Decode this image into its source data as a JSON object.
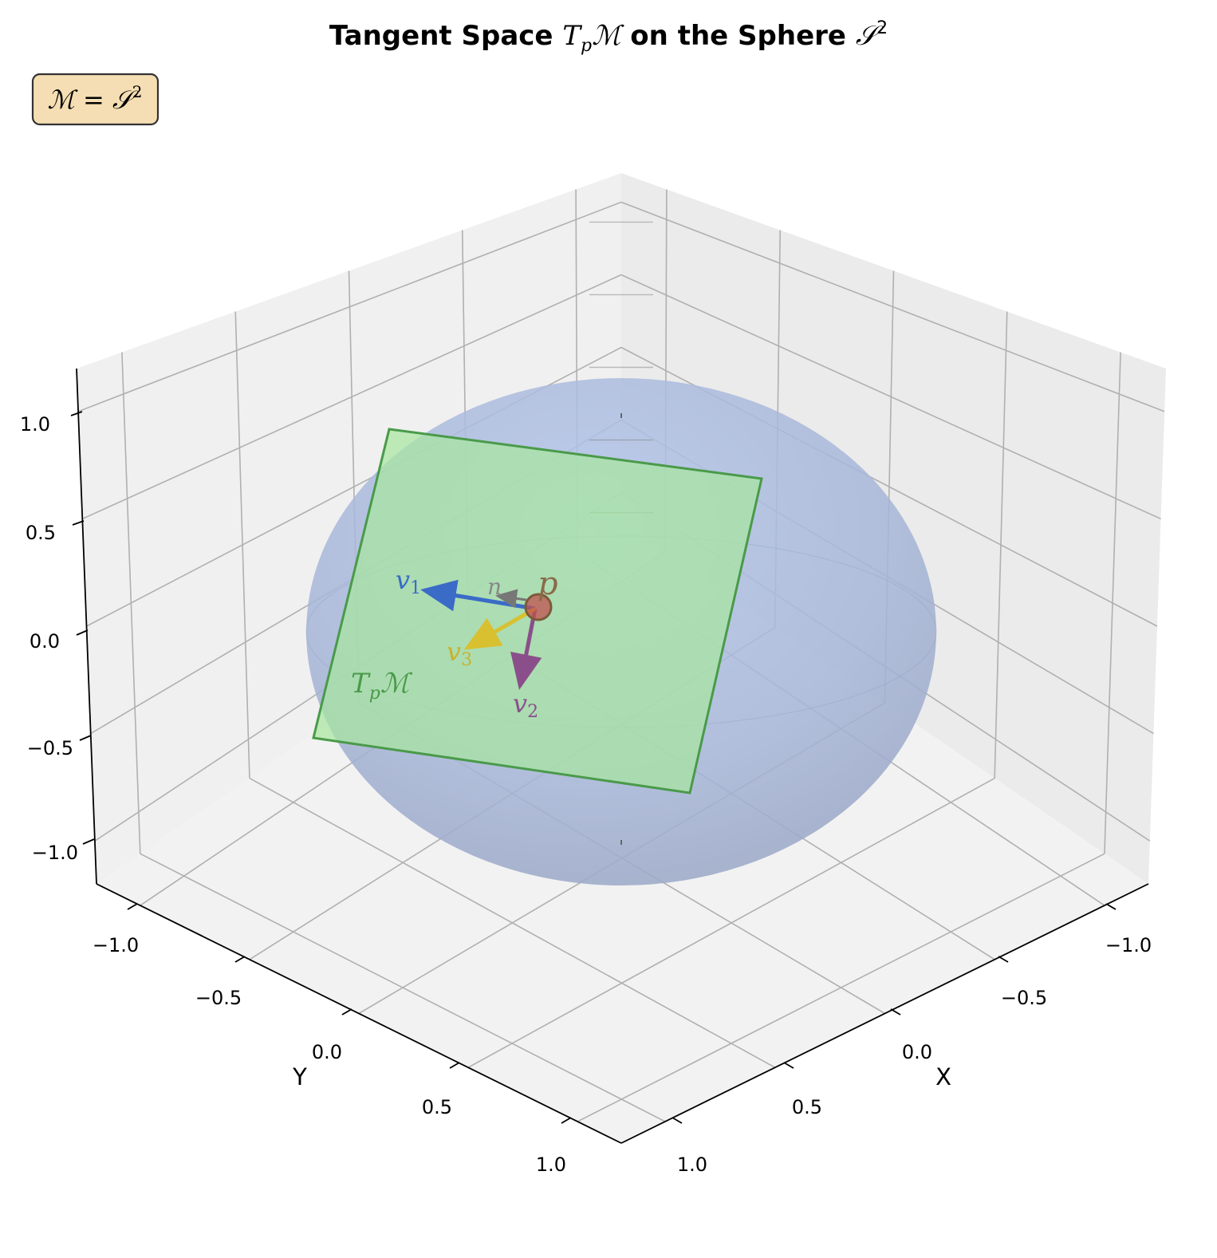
{
  "chart_data": {
    "type": "3d-surface",
    "title": {
      "prefix": "Tangent Space ",
      "tangent_symbol": "T",
      "tangent_sub": "p",
      "manifold_symbol": "ℳ",
      "middle": " on the Sphere ",
      "sphere_symbol": "𝒮",
      "sphere_sup": "2"
    },
    "annotation_box": {
      "lhs": "ℳ",
      "eq": " = ",
      "rhs": "𝒮",
      "rhs_sup": "2",
      "fill": "#f5deb3"
    },
    "axes": {
      "x": {
        "label": "X",
        "ticks": [
          "−1.0",
          "−0.5",
          "0.0",
          "0.5",
          "1.0"
        ],
        "range": [
          -1.2,
          1.2
        ]
      },
      "y": {
        "label": "Y",
        "ticks": [
          "−1.0",
          "−0.5",
          "0.0",
          "0.5",
          "1.0"
        ],
        "range": [
          -1.2,
          1.2
        ]
      },
      "z": {
        "ticks": [
          "−1.0",
          "−0.5",
          "0.0",
          "0.5",
          "1.0"
        ],
        "range": [
          -1.2,
          1.2
        ]
      },
      "grid": true
    },
    "sphere": {
      "radius": 1.0,
      "color": "#7f9fd8",
      "alpha": 0.45
    },
    "point": {
      "label": "p",
      "color": "#c0504d"
    },
    "tangent_plane": {
      "label_main": "T",
      "label_sub": "p",
      "label_tail": "ℳ",
      "fill": "#a8e6a0",
      "edge": "#4a9a4a"
    },
    "vectors": [
      {
        "name": "v",
        "sub": "1",
        "color": "#3a6bc7"
      },
      {
        "name": "v",
        "sub": "2",
        "color": "#8a4f8a"
      },
      {
        "name": "v",
        "sub": "3",
        "color": "#d8c030"
      },
      {
        "name": "n",
        "sub": "",
        "color": "#777777"
      }
    ]
  }
}
